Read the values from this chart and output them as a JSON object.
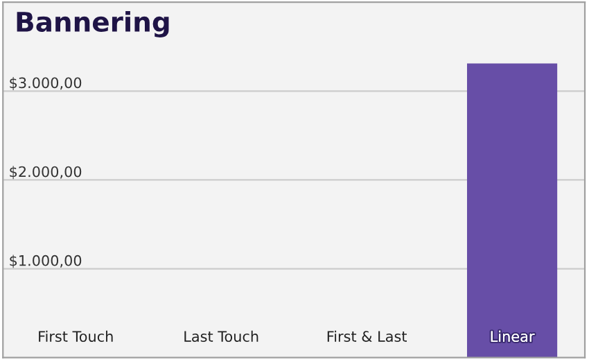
{
  "chart_data": {
    "type": "bar",
    "title": "Bannering",
    "categories": [
      "First Touch",
      "Last Touch",
      "First & Last",
      "Linear"
    ],
    "values": [
      0,
      0,
      0,
      3310
    ],
    "color": "#674ea7",
    "ylim": [
      0,
      4000
    ],
    "yticks": [
      {
        "value": 1000,
        "label": "$1.000,00"
      },
      {
        "value": 2000,
        "label": "$2.000,00"
      },
      {
        "value": 3000,
        "label": "$3.000,00"
      }
    ],
    "grid": "y"
  }
}
